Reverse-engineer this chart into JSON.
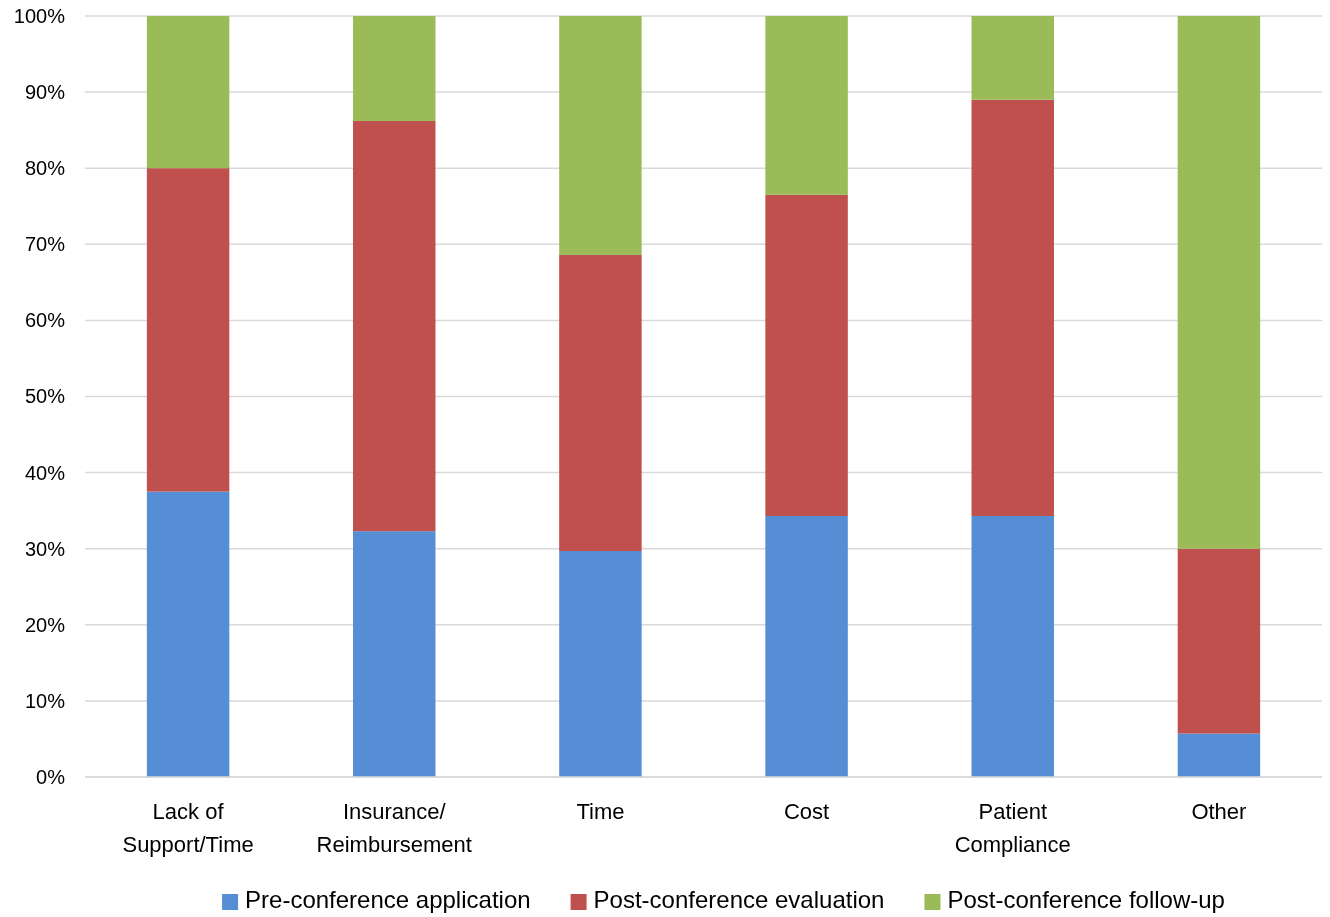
{
  "chart_data": {
    "type": "bar",
    "stacked": true,
    "categories": [
      "Lack of Support/Time",
      "Insurance/ Reimbursement",
      "Time",
      "Cost",
      "Patient Compliance",
      "Other"
    ],
    "series": [
      {
        "name": "Pre-conference application",
        "color": "#558ed5",
        "values": [
          37.5,
          32.3,
          29.7,
          34.3,
          34.3,
          5.7
        ]
      },
      {
        "name": "Post-conference evaluation",
        "color": "#c0504d",
        "values": [
          42.5,
          53.9,
          38.9,
          42.2,
          54.7,
          24.3
        ]
      },
      {
        "name": "Post-conference follow-up",
        "color": "#9bbb59",
        "values": [
          20.0,
          13.8,
          31.4,
          23.5,
          11.0,
          70.0
        ]
      }
    ],
    "ylim": [
      0,
      100
    ],
    "yticks": [
      {
        "value": 0,
        "label": "0%"
      },
      {
        "value": 10,
        "label": "10%"
      },
      {
        "value": 20,
        "label": "20%"
      },
      {
        "value": 30,
        "label": "30%"
      },
      {
        "value": 40,
        "label": "40%"
      },
      {
        "value": 50,
        "label": "50%"
      },
      {
        "value": 60,
        "label": "60%"
      },
      {
        "value": 70,
        "label": "70%"
      },
      {
        "value": 80,
        "label": "80%"
      },
      {
        "value": 90,
        "label": "90%"
      },
      {
        "value": 100,
        "label": "100%"
      }
    ],
    "grid": "y",
    "legend": "bottom"
  }
}
